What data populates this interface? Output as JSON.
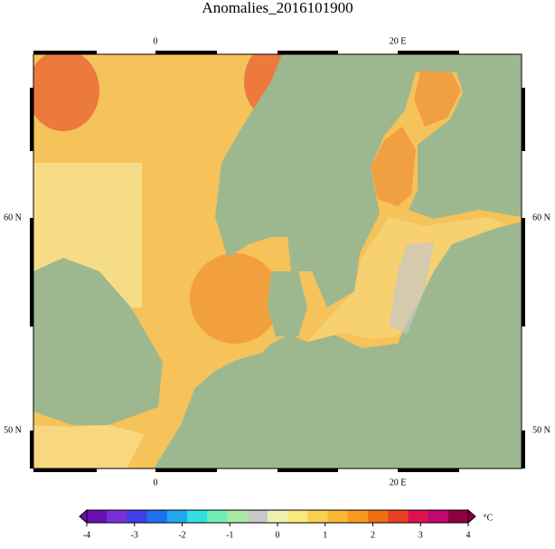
{
  "title": "Anomalies_2016101900",
  "map": {
    "lon_labels": [
      "0",
      "20 E"
    ],
    "lat_labels": [
      "60 N",
      "50 N"
    ]
  },
  "colorbar": {
    "min": -4,
    "max": 4,
    "ticks": [
      -4,
      -3,
      -2,
      -1,
      0,
      1,
      2,
      3,
      4
    ],
    "unit": "°C",
    "colors": [
      "#6a10b0",
      "#7a30d8",
      "#4040e8",
      "#2070f0",
      "#20a8f0",
      "#30e0e0",
      "#70f0b0",
      "#a8e8a0",
      "#c8c8c8",
      "#f0f0b0",
      "#f8e880",
      "#f8d050",
      "#f8b830",
      "#f89820",
      "#f07010",
      "#e84020",
      "#e01050",
      "#c00870",
      "#900040"
    ]
  }
}
